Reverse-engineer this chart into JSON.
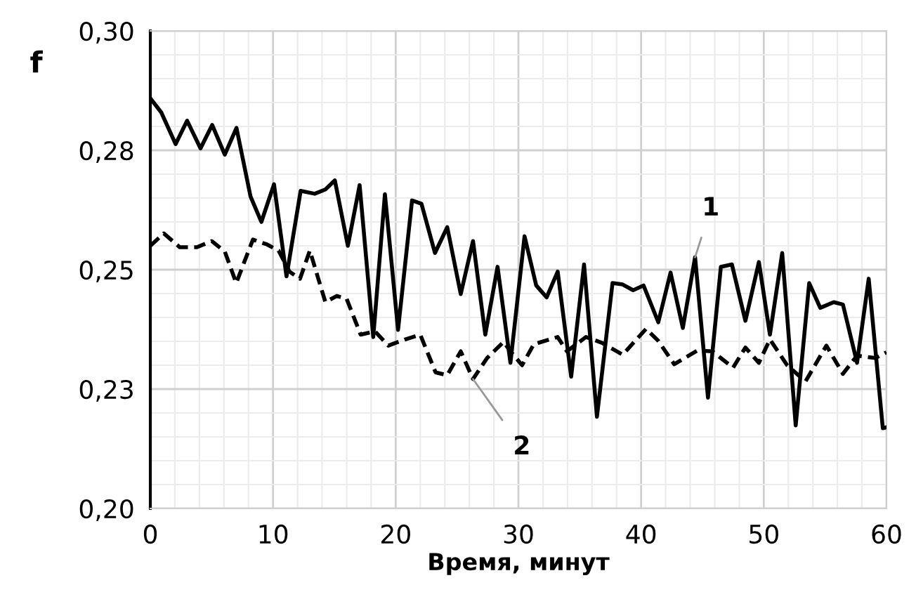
{
  "chart_data": {
    "type": "line",
    "xlabel": "Время, минут",
    "ylabel": "f",
    "xlim": [
      0,
      60
    ],
    "xticks": [
      0,
      10,
      20,
      30,
      40,
      50,
      60
    ],
    "ylim": [
      0.2,
      0.3
    ],
    "yticks": [
      {
        "value": 0.2,
        "label": "0,20"
      },
      {
        "value": 0.225,
        "label": "0,23"
      },
      {
        "value": 0.25,
        "label": "0,25"
      },
      {
        "value": 0.275,
        "label": "0,28"
      },
      {
        "value": 0.3,
        "label": "0,30"
      }
    ],
    "grid": true,
    "marker": "none",
    "series": [
      {
        "color": "#000000",
        "line_style": "solid",
        "x": [
          0,
          0.9,
          2.06,
          3.0,
          4.09,
          5.04,
          6.07,
          7.02,
          8.17,
          9.05,
          10.08,
          11.1,
          12.25,
          13.4,
          14.27,
          15.04,
          16.1,
          17.06,
          18.17,
          19.12,
          20.19,
          21.33,
          22.1,
          23.2,
          24.2,
          25.3,
          26.3,
          27.3,
          28.3,
          29.35,
          30.5,
          31.45,
          32.3,
          33.2,
          34.3,
          35.35,
          36.4,
          37.67,
          38.5,
          39.35,
          40.2,
          41.4,
          42.4,
          43.4,
          44.4,
          45.45,
          46.5,
          47.4,
          48.5,
          49.6,
          50.5,
          51.5,
          52.6,
          53.7,
          54.6,
          55.7,
          56.45,
          57.6,
          58.55,
          59.7,
          60
        ],
        "values": [
          0.2859,
          0.2829,
          0.2763,
          0.2812,
          0.2754,
          0.2803,
          0.2741,
          0.2797,
          0.2653,
          0.26,
          0.2679,
          0.2486,
          0.2665,
          0.2659,
          0.2668,
          0.2687,
          0.255,
          0.2677,
          0.2359,
          0.2658,
          0.2374,
          0.2645,
          0.2638,
          0.2535,
          0.2589,
          0.2449,
          0.256,
          0.2364,
          0.2506,
          0.2305,
          0.257,
          0.2467,
          0.2442,
          0.2496,
          0.2276,
          0.2511,
          0.2192,
          0.2472,
          0.2469,
          0.2457,
          0.2467,
          0.239,
          0.2494,
          0.2378,
          0.2526,
          0.2232,
          0.2506,
          0.2511,
          0.2393,
          0.2516,
          0.2364,
          0.2535,
          0.2174,
          0.2472,
          0.242,
          0.2432,
          0.2427,
          0.2305,
          0.2481,
          0.2168,
          0.217
        ]
      },
      {
        "color": "#000000",
        "line_style": "dashed",
        "x": [
          0,
          1.1,
          2.4,
          3.8,
          5.0,
          6.07,
          7.0,
          8.36,
          9.5,
          10.45,
          11.34,
          12.2,
          13.0,
          14.27,
          15.2,
          16.0,
          17.14,
          18.3,
          19.4,
          20.77,
          22.0,
          23.25,
          24.2,
          25.3,
          26.3,
          27.45,
          28.8,
          29.35,
          30.3,
          31.26,
          33.2,
          33.95,
          35.5,
          36.8,
          38.5,
          40.4,
          41.4,
          42.7,
          44.6,
          45.8,
          47.5,
          48.5,
          49.6,
          50.5,
          51.9,
          53.4,
          55.1,
          56.45,
          57.6,
          59.1,
          60
        ],
        "values": [
          0.255,
          0.2576,
          0.2547,
          0.2547,
          0.256,
          0.2538,
          0.2472,
          0.2563,
          0.2553,
          0.254,
          0.2496,
          0.2481,
          0.254,
          0.2432,
          0.2445,
          0.2439,
          0.2364,
          0.2371,
          0.2341,
          0.2354,
          0.2364,
          0.2285,
          0.2279,
          0.2329,
          0.2271,
          0.2315,
          0.2349,
          0.2329,
          0.23,
          0.2344,
          0.2359,
          0.2329,
          0.2359,
          0.2347,
          0.2322,
          0.2376,
          0.2351,
          0.2302,
          0.2331,
          0.2329,
          0.2295,
          0.2337,
          0.2305,
          0.2354,
          0.23,
          0.2266,
          0.2341,
          0.2282,
          0.232,
          0.2315,
          0.2327
        ]
      }
    ],
    "annotations": [
      {
        "text": "1",
        "x": 44.4,
        "y": 0.2526
      },
      {
        "text": "2",
        "x": 26.3,
        "y": 0.2271
      }
    ]
  }
}
